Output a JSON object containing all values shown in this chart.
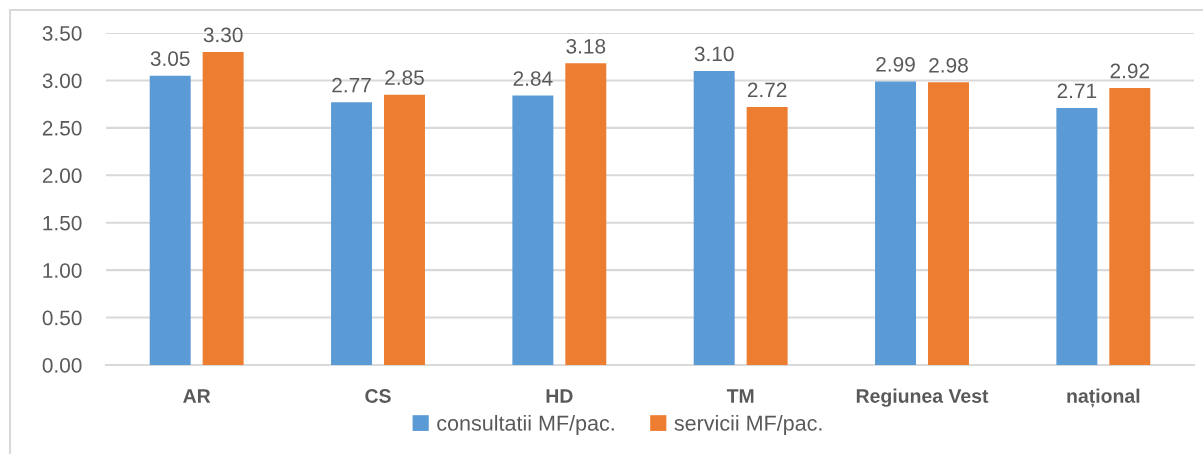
{
  "chart_data": {
    "type": "bar",
    "categories": [
      "AR",
      "CS",
      "HD",
      "TM",
      "Regiunea Vest",
      "național"
    ],
    "series": [
      {
        "name": "consultatii MF/pac.",
        "color": "#5b9bd5",
        "values": [
          3.05,
          2.77,
          2.84,
          3.1,
          2.99,
          2.71
        ],
        "value_labels": [
          "3.05",
          "2.77",
          "2.84",
          "3.10",
          "2.99",
          "2.71"
        ]
      },
      {
        "name": "servicii MF/pac.",
        "color": "#ed7d31",
        "values": [
          3.3,
          2.85,
          3.18,
          2.72,
          2.98,
          2.92
        ],
        "value_labels": [
          "3.30",
          "2.85",
          "3.18",
          "2.72",
          "2.98",
          "2.92"
        ]
      }
    ],
    "ylim": [
      0,
      3.5
    ],
    "yticks": [
      {
        "value": 0,
        "label": "0.00"
      },
      {
        "value": 0.5,
        "label": "0.50"
      },
      {
        "value": 1,
        "label": "1.00"
      },
      {
        "value": 1.5,
        "label": "1.50"
      },
      {
        "value": 2,
        "label": "2.00"
      },
      {
        "value": 2.5,
        "label": "2.50"
      },
      {
        "value": 3,
        "label": "3.00"
      },
      {
        "value": 3.5,
        "label": "3.50"
      }
    ],
    "grid": "y",
    "legend": "bottom"
  }
}
